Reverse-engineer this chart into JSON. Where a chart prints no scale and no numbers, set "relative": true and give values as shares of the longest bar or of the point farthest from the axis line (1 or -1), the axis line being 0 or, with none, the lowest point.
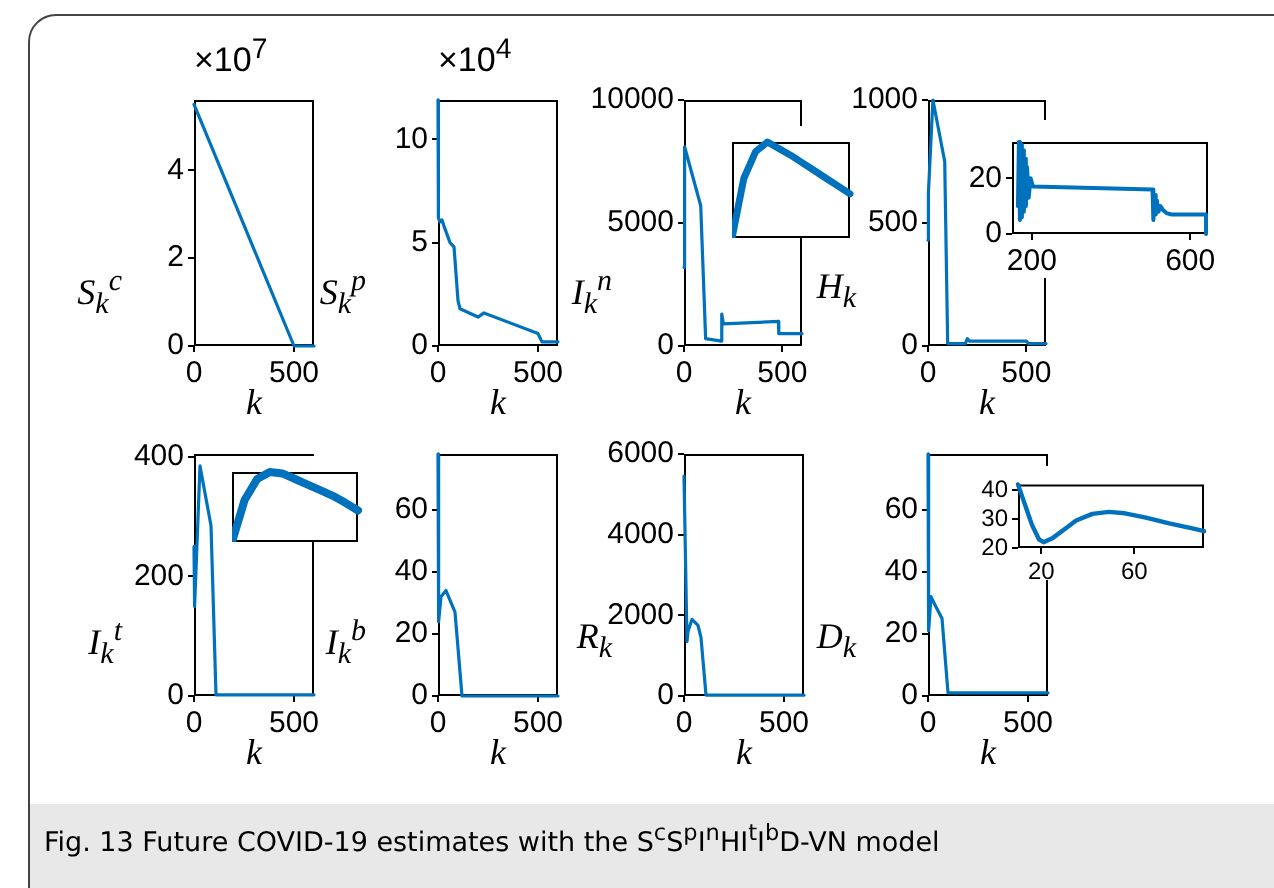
{
  "chart_data": [
    {
      "type": "line",
      "ylabel": "S$_{k}$$^{c}$",
      "xlabel": "k",
      "xlim": [
        0,
        600
      ],
      "xticks": [
        0,
        500
      ],
      "ylim": [
        0,
        5.6
      ],
      "yticks": [
        0,
        2,
        4
      ],
      "annotations": [
        "×10$^{7}$",
        "Fig. 13  Future COVID-19 estimates with the S$^{c}$S$^{p}$I$^{n}$HI$^{t}$I$^{b}$D-VN model"
      ],
      "series": [
        {
          "color": "#0072bd",
          "x": [
            0,
            500,
            600
          ],
          "values": [
            5.5,
            0,
            0
          ]
        }
      ]
    },
    {
      "type": "line",
      "ylabel": "S$_{k}$$^{p}$",
      "xlabel": "k",
      "xlim": [
        0,
        600
      ],
      "xticks": [
        0,
        500
      ],
      "ylim": [
        0,
        11.9
      ],
      "yticks": [
        0,
        5,
        10
      ],
      "annotations": [
        "×10$^{4}$"
      ],
      "series": [
        {
          "color": "#0072bd",
          "x": [
            0,
            2,
            10,
            20,
            30,
            60,
            80,
            100,
            110,
            200,
            230,
            500,
            520,
            600
          ],
          "values": [
            11.9,
            6.2,
            6.0,
            6.1,
            5.8,
            5.0,
            4.8,
            2.2,
            1.8,
            1.4,
            1.6,
            0.6,
            0.2,
            0.2
          ]
        }
      ]
    },
    {
      "type": "line",
      "ylabel": "I$_{k}$$^{n}$",
      "xlabel": "k",
      "xlim": [
        0,
        600
      ],
      "xticks": [
        0,
        500
      ],
      "ylim": [
        0,
        10000
      ],
      "yticks": [
        0,
        5000,
        10000
      ],
      "series": [
        {
          "color": "#0072bd",
          "x": [
            0,
            3,
            85,
            110,
            190,
            192,
            200,
            480,
            482,
            600
          ],
          "values": [
            3200,
            8100,
            5700,
            300,
            200,
            1300,
            900,
            1000,
            500,
            500
          ]
        }
      ]
    },
    {
      "type": "line",
      "relative": true,
      "categories": [
        null,
        null,
        null,
        null,
        null,
        null,
        null,
        null,
        null,
        null,
        null
      ],
      "series": [
        {
          "color": "#0072bd",
          "values": [
            0,
            0.62,
            0.9,
            1,
            0.93,
            0.86,
            0.78,
            0.7,
            0.62,
            0.54,
            0.46
          ]
        }
      ]
    },
    {
      "type": "line",
      "ylabel": "H$_{k}$",
      "xlabel": "k",
      "xlim": [
        0,
        600
      ],
      "xticks": [
        0,
        500
      ],
      "ylim": [
        0,
        1000
      ],
      "yticks": [
        0,
        500,
        1000
      ],
      "series": [
        {
          "color": "#0072bd",
          "x": [
            0,
            2,
            25,
            85,
            100,
            190,
            200,
            210,
            500,
            510,
            600
          ],
          "values": [
            430,
            620,
            1000,
            750,
            10,
            10,
            30,
            20,
            20,
            10,
            10
          ]
        }
      ]
    },
    {
      "type": "line",
      "xlim": [
        150,
        645
      ],
      "xticks": [
        200,
        600
      ],
      "ylim": [
        0,
        33
      ],
      "yticks": [
        0,
        20
      ],
      "series": [
        {
          "color": "#0072bd",
          "x": [
            165,
            167.5,
            170,
            172.5,
            175,
            177.5,
            180,
            182.5,
            185,
            188,
            192,
            197,
            203,
            505,
            507,
            510,
            513,
            516,
            520,
            525,
            532,
            540,
            553,
            640,
            640
          ],
          "values": [
            10,
            33,
            5,
            32,
            6,
            30,
            8,
            27,
            10,
            24,
            13,
            20,
            17,
            16,
            5,
            14,
            7,
            12,
            8,
            10,
            8.5,
            7.5,
            7,
            7,
            0
          ]
        }
      ]
    },
    {
      "type": "line",
      "ylabel": "I$_{k}$$^{t}$",
      "xlabel": "k",
      "xlim": [
        0,
        600
      ],
      "xticks": [
        0,
        500
      ],
      "ylim": [
        0,
        405
      ],
      "yticks": [
        0,
        200,
        400
      ],
      "series": [
        {
          "color": "#0072bd",
          "x": [
            0,
            3,
            30,
            85,
            110,
            600
          ],
          "values": [
            250,
            150,
            385,
            285,
            2,
            2
          ]
        }
      ]
    },
    {
      "type": "line",
      "relative": true,
      "categories": [
        null,
        null,
        null,
        null,
        null,
        null,
        null,
        null,
        null,
        null,
        null
      ],
      "series": [
        {
          "color": "#0072bd",
          "values": [
            0,
            0.6,
            0.9,
            1,
            0.98,
            0.9,
            0.82,
            0.74,
            0.66,
            0.56,
            0.45
          ]
        }
      ]
    },
    {
      "type": "line",
      "ylabel": "I$_{k}$$^{b}$",
      "xlabel": "k",
      "xlim": [
        0,
        600
      ],
      "xticks": [
        0,
        500
      ],
      "ylim": [
        0,
        78
      ],
      "yticks": [
        0,
        20,
        40,
        60
      ],
      "series": [
        {
          "color": "#0072bd",
          "x": [
            0,
            3,
            15,
            40,
            85,
            120,
            600
          ],
          "values": [
            78,
            24,
            32,
            34,
            27,
            0,
            0
          ]
        }
      ]
    },
    {
      "type": "line",
      "ylabel": "R$_{k}$",
      "xlabel": "k",
      "xlim": [
        0,
        600
      ],
      "xticks": [
        0,
        500
      ],
      "ylim": [
        0,
        6000
      ],
      "yticks": [
        0,
        2000,
        4000,
        6000
      ],
      "series": [
        {
          "color": "#0072bd",
          "x": [
            0,
            15,
            20,
            40,
            70,
            85,
            110,
            600
          ],
          "values": [
            5450,
            1350,
            1600,
            1900,
            1750,
            1450,
            20,
            20
          ]
        }
      ]
    },
    {
      "type": "line",
      "ylabel": "D$_{k}$",
      "xlabel": "k",
      "xlim": [
        0,
        600
      ],
      "xticks": [
        0,
        500
      ],
      "ylim": [
        0,
        78
      ],
      "yticks": [
        0,
        20,
        40,
        60
      ],
      "series": [
        {
          "color": "#0072bd",
          "x": [
            0,
            3,
            15,
            30,
            70,
            100,
            600
          ],
          "values": [
            78,
            21,
            32,
            30,
            25,
            1,
            1
          ]
        }
      ]
    },
    {
      "type": "line",
      "xlim": [
        10,
        90
      ],
      "xticks": [
        20,
        60
      ],
      "ylim": [
        20,
        42
      ],
      "yticks": [
        20,
        30,
        40
      ],
      "series": [
        {
          "color": "#0072bd",
          "x": [
            10,
            13,
            16,
            19,
            21,
            25,
            30,
            35,
            42,
            49,
            56,
            65,
            75,
            85,
            90
          ],
          "values": [
            42,
            35,
            28,
            23,
            22,
            23.5,
            26.5,
            29.5,
            31.8,
            32.5,
            32,
            30.5,
            28.5,
            26.8,
            25.8
          ]
        }
      ]
    }
  ]
}
